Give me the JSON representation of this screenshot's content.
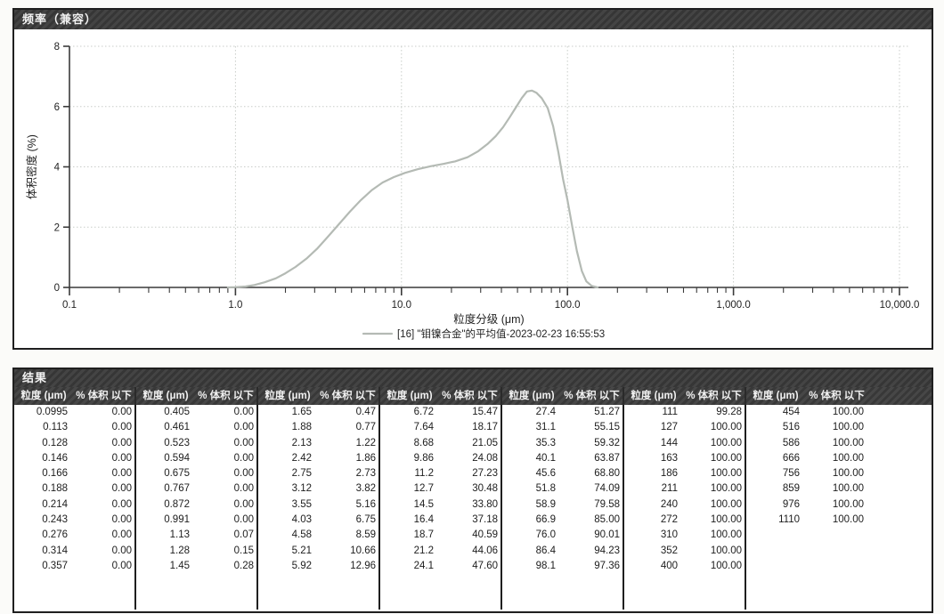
{
  "chart_data": {
    "type": "line",
    "title": "频率（兼容）",
    "xlabel": "粒度分级 (μm)",
    "ylabel": "体积密度 (%)",
    "x_scale": "log",
    "xlim": [
      0.1,
      10000
    ],
    "ylim": [
      0,
      8
    ],
    "x_ticks": [
      0.1,
      1,
      10,
      100,
      1000,
      10000
    ],
    "x_tick_labels": [
      "0.1",
      "1.0",
      "10.0",
      "100.0",
      "1,000.0",
      "10,000.0"
    ],
    "y_ticks": [
      0,
      2,
      4,
      6,
      8
    ],
    "grid": true,
    "legend_position": "bottom",
    "legend": "[16] \"钼镍合金\"的平均值-2023-02-23 16:55:53",
    "series": [
      {
        "name": "[16] \"钼镍合金\"的平均值-2023-02-23 16:55:53",
        "color": "#b4bab4",
        "points": [
          [
            0.9,
            0.0
          ],
          [
            1.0,
            0.01
          ],
          [
            1.15,
            0.03
          ],
          [
            1.3,
            0.08
          ],
          [
            1.5,
            0.17
          ],
          [
            1.75,
            0.3
          ],
          [
            2.0,
            0.47
          ],
          [
            2.3,
            0.68
          ],
          [
            2.7,
            0.97
          ],
          [
            3.1,
            1.28
          ],
          [
            3.6,
            1.68
          ],
          [
            4.2,
            2.1
          ],
          [
            4.9,
            2.52
          ],
          [
            5.7,
            2.9
          ],
          [
            6.6,
            3.22
          ],
          [
            7.7,
            3.48
          ],
          [
            9.0,
            3.66
          ],
          [
            10.5,
            3.8
          ],
          [
            12.5,
            3.92
          ],
          [
            15.0,
            4.02
          ],
          [
            18.0,
            4.1
          ],
          [
            21.0,
            4.18
          ],
          [
            25.0,
            4.32
          ],
          [
            29.0,
            4.52
          ],
          [
            33.0,
            4.76
          ],
          [
            37.0,
            5.02
          ],
          [
            41.0,
            5.32
          ],
          [
            45.0,
            5.66
          ],
          [
            49.0,
            5.98
          ],
          [
            53.0,
            6.28
          ],
          [
            57.0,
            6.5
          ],
          [
            61.0,
            6.53
          ],
          [
            65.0,
            6.46
          ],
          [
            70.0,
            6.28
          ],
          [
            76.0,
            5.95
          ],
          [
            82.0,
            5.35
          ],
          [
            88.0,
            4.5
          ],
          [
            94.0,
            3.6
          ],
          [
            100.0,
            2.9
          ],
          [
            107.0,
            2.0
          ],
          [
            114.0,
            1.2
          ],
          [
            122.0,
            0.55
          ],
          [
            130.0,
            0.2
          ],
          [
            140.0,
            0.05
          ],
          [
            152.0,
            0.0
          ]
        ]
      }
    ]
  },
  "results": {
    "title": "结果",
    "size_header": "粒度 (μm)",
    "pct_header": "% 体积 以下",
    "groups": [
      [
        [
          "0.0995",
          "0.00"
        ],
        [
          "0.113",
          "0.00"
        ],
        [
          "0.128",
          "0.00"
        ],
        [
          "0.146",
          "0.00"
        ],
        [
          "0.166",
          "0.00"
        ],
        [
          "0.188",
          "0.00"
        ],
        [
          "0.214",
          "0.00"
        ],
        [
          "0.243",
          "0.00"
        ],
        [
          "0.276",
          "0.00"
        ],
        [
          "0.314",
          "0.00"
        ],
        [
          "0.357",
          "0.00"
        ]
      ],
      [
        [
          "0.405",
          "0.00"
        ],
        [
          "0.461",
          "0.00"
        ],
        [
          "0.523",
          "0.00"
        ],
        [
          "0.594",
          "0.00"
        ],
        [
          "0.675",
          "0.00"
        ],
        [
          "0.767",
          "0.00"
        ],
        [
          "0.872",
          "0.00"
        ],
        [
          "0.991",
          "0.00"
        ],
        [
          "1.13",
          "0.07"
        ],
        [
          "1.28",
          "0.15"
        ],
        [
          "1.45",
          "0.28"
        ]
      ],
      [
        [
          "1.65",
          "0.47"
        ],
        [
          "1.88",
          "0.77"
        ],
        [
          "2.13",
          "1.22"
        ],
        [
          "2.42",
          "1.86"
        ],
        [
          "2.75",
          "2.73"
        ],
        [
          "3.12",
          "3.82"
        ],
        [
          "3.55",
          "5.16"
        ],
        [
          "4.03",
          "6.75"
        ],
        [
          "4.58",
          "8.59"
        ],
        [
          "5.21",
          "10.66"
        ],
        [
          "5.92",
          "12.96"
        ]
      ],
      [
        [
          "6.72",
          "15.47"
        ],
        [
          "7.64",
          "18.17"
        ],
        [
          "8.68",
          "21.05"
        ],
        [
          "9.86",
          "24.08"
        ],
        [
          "11.2",
          "27.23"
        ],
        [
          "12.7",
          "30.48"
        ],
        [
          "14.5",
          "33.80"
        ],
        [
          "16.4",
          "37.18"
        ],
        [
          "18.7",
          "40.59"
        ],
        [
          "21.2",
          "44.06"
        ],
        [
          "24.1",
          "47.60"
        ]
      ],
      [
        [
          "27.4",
          "51.27"
        ],
        [
          "31.1",
          "55.15"
        ],
        [
          "35.3",
          "59.32"
        ],
        [
          "40.1",
          "63.87"
        ],
        [
          "45.6",
          "68.80"
        ],
        [
          "51.8",
          "74.09"
        ],
        [
          "58.9",
          "79.58"
        ],
        [
          "66.9",
          "85.00"
        ],
        [
          "76.0",
          "90.01"
        ],
        [
          "86.4",
          "94.23"
        ],
        [
          "98.1",
          "97.36"
        ]
      ],
      [
        [
          "111",
          "99.28"
        ],
        [
          "127",
          "100.00"
        ],
        [
          "144",
          "100.00"
        ],
        [
          "163",
          "100.00"
        ],
        [
          "186",
          "100.00"
        ],
        [
          "211",
          "100.00"
        ],
        [
          "240",
          "100.00"
        ],
        [
          "272",
          "100.00"
        ],
        [
          "310",
          "100.00"
        ],
        [
          "352",
          "100.00"
        ],
        [
          "400",
          "100.00"
        ]
      ],
      [
        [
          "454",
          "100.00"
        ],
        [
          "516",
          "100.00"
        ],
        [
          "586",
          "100.00"
        ],
        [
          "666",
          "100.00"
        ],
        [
          "756",
          "100.00"
        ],
        [
          "859",
          "100.00"
        ],
        [
          "976",
          "100.00"
        ],
        [
          "1110",
          "100.00"
        ]
      ]
    ]
  }
}
